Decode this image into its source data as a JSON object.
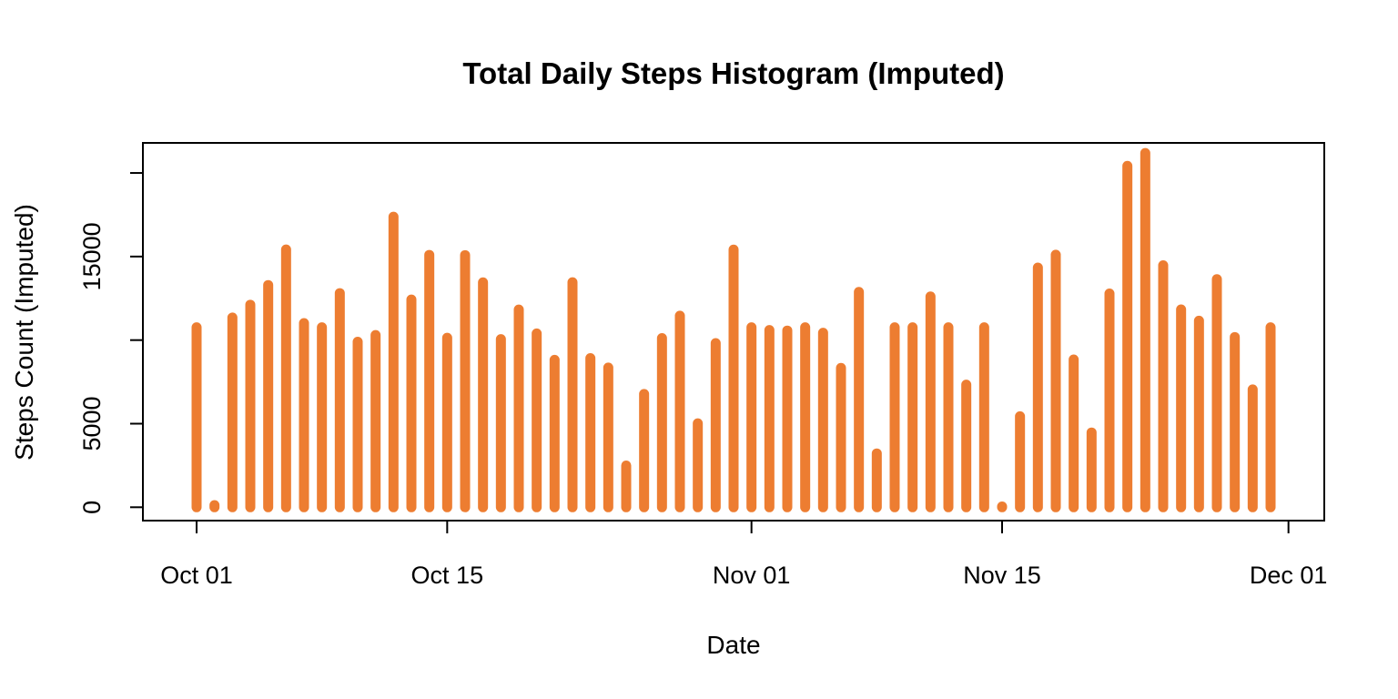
{
  "chart_data": {
    "type": "bar",
    "title": "Total Daily Steps Histogram (Imputed)",
    "xlabel": "Date",
    "ylabel": "Steps Count (Imputed)",
    "bar_color": "#ED7D31",
    "x_tick_labels": [
      "Oct 01",
      "Oct 15",
      "Nov 01",
      "Nov 15",
      "Dec 01"
    ],
    "x_tick_dates": [
      "2012-10-01",
      "2012-10-15",
      "2012-11-01",
      "2012-11-15",
      "2012-12-01"
    ],
    "y_ticks": [
      0,
      5000,
      10000,
      15000,
      20000
    ],
    "y_tick_labels": [
      "0",
      "5000",
      "",
      "15000",
      ""
    ],
    "xlim": [
      "2012-09-28",
      "2012-12-03"
    ],
    "ylim": [
      -800,
      21800
    ],
    "x": [
      "2012-10-01",
      "2012-10-02",
      "2012-10-03",
      "2012-10-04",
      "2012-10-05",
      "2012-10-06",
      "2012-10-07",
      "2012-10-08",
      "2012-10-09",
      "2012-10-10",
      "2012-10-11",
      "2012-10-12",
      "2012-10-13",
      "2012-10-14",
      "2012-10-15",
      "2012-10-16",
      "2012-10-17",
      "2012-10-18",
      "2012-10-19",
      "2012-10-20",
      "2012-10-21",
      "2012-10-22",
      "2012-10-23",
      "2012-10-24",
      "2012-10-25",
      "2012-10-26",
      "2012-10-27",
      "2012-10-28",
      "2012-10-29",
      "2012-10-30",
      "2012-10-31",
      "2012-11-01",
      "2012-11-02",
      "2012-11-03",
      "2012-11-04",
      "2012-11-05",
      "2012-11-06",
      "2012-11-07",
      "2012-11-08",
      "2012-11-09",
      "2012-11-10",
      "2012-11-11",
      "2012-11-12",
      "2012-11-13",
      "2012-11-14",
      "2012-11-15",
      "2012-11-16",
      "2012-11-17",
      "2012-11-18",
      "2012-11-19",
      "2012-11-20",
      "2012-11-21",
      "2012-11-22",
      "2012-11-23",
      "2012-11-24",
      "2012-11-25",
      "2012-11-26",
      "2012-11-27",
      "2012-11-28",
      "2012-11-29",
      "2012-11-30"
    ],
    "values": [
      10766,
      126,
      11352,
      12116,
      13294,
      15420,
      11015,
      10766,
      12811,
      9900,
      10304,
      17382,
      12426,
      15098,
      10139,
      15084,
      13452,
      10056,
      11829,
      10395,
      8821,
      13460,
      8918,
      8355,
      2492,
      6778,
      10119,
      11458,
      5018,
      9819,
      15414,
      10766,
      10600,
      10571,
      10766,
      10439,
      8334,
      12883,
      3219,
      10766,
      10766,
      12608,
      10765,
      7336,
      10766,
      41,
      5441,
      14339,
      15110,
      8841,
      4472,
      12787,
      20427,
      21194,
      14478,
      11834,
      11162,
      13646,
      10183,
      7047,
      10766
    ]
  }
}
